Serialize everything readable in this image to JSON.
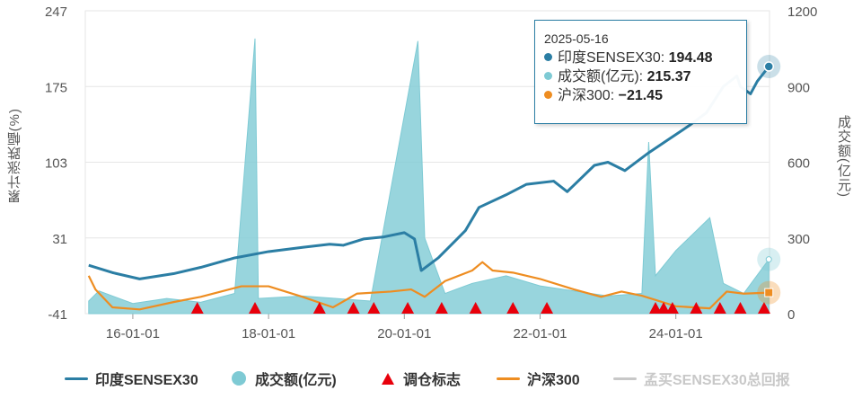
{
  "chart_data": {
    "type": "line",
    "left_axis": {
      "label": "累计涨跌幅(%)",
      "ticks": [
        "247",
        "175",
        "103",
        "31",
        "-41"
      ],
      "min": -41,
      "max": 247
    },
    "right_axis": {
      "label": "成交额(亿元)",
      "ticks": [
        "1200",
        "900",
        "600",
        "300",
        "0"
      ],
      "min": 0,
      "max": 1200
    },
    "x_axis": {
      "ticks": [
        "16-01-01",
        "18-01-01",
        "20-01-01",
        "22-01-01",
        "24-01-01"
      ],
      "tick_years": [
        2016,
        2018,
        2020,
        2022,
        2024
      ],
      "start": 2015.3,
      "end": 2025.38
    },
    "series": [
      {
        "name": "印度SENSEX30",
        "axis": "left",
        "color": "#2b7ea4",
        "points": [
          [
            2015.35,
            5
          ],
          [
            2015.7,
            -2
          ],
          [
            2016.1,
            -8
          ],
          [
            2016.6,
            -3
          ],
          [
            2017.0,
            3
          ],
          [
            2017.5,
            12
          ],
          [
            2018.0,
            18
          ],
          [
            2018.5,
            22
          ],
          [
            2018.9,
            25
          ],
          [
            2019.1,
            24
          ],
          [
            2019.4,
            30
          ],
          [
            2019.7,
            32
          ],
          [
            2020.0,
            36
          ],
          [
            2020.15,
            30
          ],
          [
            2020.25,
            0
          ],
          [
            2020.5,
            12
          ],
          [
            2020.9,
            38
          ],
          [
            2021.1,
            60
          ],
          [
            2021.5,
            72
          ],
          [
            2021.8,
            82
          ],
          [
            2022.2,
            85
          ],
          [
            2022.4,
            75
          ],
          [
            2022.8,
            100
          ],
          [
            2023.0,
            103
          ],
          [
            2023.25,
            95
          ],
          [
            2023.6,
            112
          ],
          [
            2023.9,
            125
          ],
          [
            2024.2,
            138
          ],
          [
            2024.45,
            150
          ],
          [
            2024.7,
            175
          ],
          [
            2024.9,
            185
          ],
          [
            2024.95,
            175
          ],
          [
            2025.1,
            168
          ],
          [
            2025.2,
            180
          ],
          [
            2025.37,
            194
          ]
        ]
      },
      {
        "name": "成交额(亿元)",
        "axis": "right",
        "color": "#7ecad4",
        "points": [
          [
            2015.35,
            50
          ],
          [
            2015.5,
            90
          ],
          [
            2016.0,
            40
          ],
          [
            2016.5,
            60
          ],
          [
            2017.0,
            45
          ],
          [
            2017.5,
            80
          ],
          [
            2017.8,
            1090
          ],
          [
            2017.85,
            60
          ],
          [
            2018.5,
            70
          ],
          [
            2019.0,
            60
          ],
          [
            2019.5,
            50
          ],
          [
            2020.2,
            1080
          ],
          [
            2020.3,
            300
          ],
          [
            2020.6,
            80
          ],
          [
            2021.0,
            120
          ],
          [
            2021.5,
            150
          ],
          [
            2022.0,
            110
          ],
          [
            2022.5,
            90
          ],
          [
            2023.0,
            70
          ],
          [
            2023.5,
            80
          ],
          [
            2023.6,
            680
          ],
          [
            2023.7,
            150
          ],
          [
            2024.0,
            250
          ],
          [
            2024.5,
            380
          ],
          [
            2024.7,
            120
          ],
          [
            2025.0,
            80
          ],
          [
            2025.37,
            215
          ]
        ]
      },
      {
        "name": "沪深300",
        "axis": "left",
        "color": "#ee8d21",
        "points": [
          [
            2015.35,
            -5
          ],
          [
            2015.45,
            -18
          ],
          [
            2015.7,
            -35
          ],
          [
            2016.1,
            -37
          ],
          [
            2016.6,
            -30
          ],
          [
            2017.0,
            -25
          ],
          [
            2017.6,
            -15
          ],
          [
            2018.0,
            -15
          ],
          [
            2018.5,
            -25
          ],
          [
            2018.95,
            -35
          ],
          [
            2019.3,
            -22
          ],
          [
            2019.8,
            -20
          ],
          [
            2020.1,
            -18
          ],
          [
            2020.3,
            -25
          ],
          [
            2020.6,
            -10
          ],
          [
            2021.0,
            0
          ],
          [
            2021.15,
            8
          ],
          [
            2021.3,
            0
          ],
          [
            2021.6,
            -2
          ],
          [
            2022.0,
            -8
          ],
          [
            2022.5,
            -18
          ],
          [
            2022.9,
            -25
          ],
          [
            2023.2,
            -20
          ],
          [
            2023.5,
            -24
          ],
          [
            2024.0,
            -34
          ],
          [
            2024.5,
            -36
          ],
          [
            2024.75,
            -20
          ],
          [
            2025.0,
            -22
          ],
          [
            2025.37,
            -21
          ]
        ]
      }
    ],
    "markers": {
      "name": "调仓标志",
      "color": "#e8000b",
      "x": [
        2016.95,
        2017.8,
        2018.75,
        2019.25,
        2019.55,
        2020.05,
        2020.55,
        2021.05,
        2021.6,
        2022.1,
        2023.7,
        2023.82,
        2023.95,
        2024.3,
        2024.65,
        2024.95,
        2025.3
      ]
    },
    "tooltip": {
      "date": "2025-05-16",
      "rows": [
        {
          "label": "印度SENSEX30: ",
          "value": "194.48",
          "color": "#2b7ea4"
        },
        {
          "label": "成交额(亿元): ",
          "value": "215.37",
          "color": "#7ecad4"
        },
        {
          "label": "沪深300: ",
          "value": "−21.45",
          "color": "#ee8d21"
        }
      ]
    },
    "legend": [
      {
        "label": "印度SENSEX30",
        "kind": "line",
        "color": "#2b7ea4",
        "active": true
      },
      {
        "label": "成交额(亿元)",
        "kind": "circle",
        "color": "#7ecad4",
        "active": true
      },
      {
        "label": "调仓标志",
        "kind": "triangle",
        "color": "#e8000b",
        "active": true
      },
      {
        "label": "沪深300",
        "kind": "line",
        "color": "#ee8d21",
        "active": true
      },
      {
        "label": "孟买SENSEX30总回报",
        "kind": "line",
        "color": "#c8c8c8",
        "active": false
      }
    ]
  }
}
